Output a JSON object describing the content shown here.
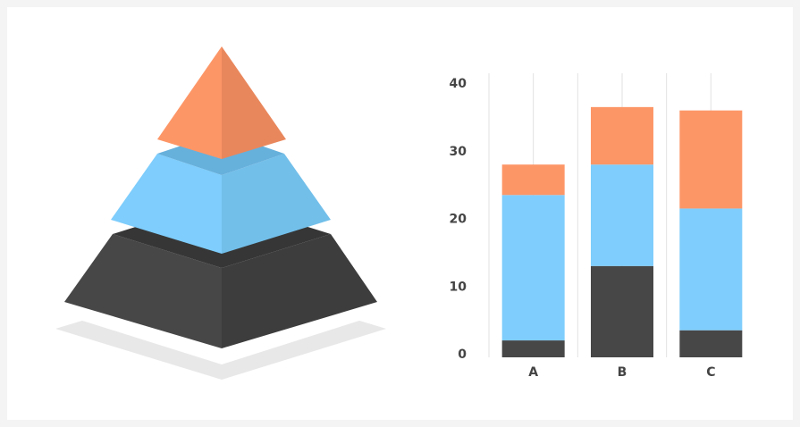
{
  "chart_data": {
    "type": "stacked-bar",
    "categories": [
      "A",
      "B",
      "C"
    ],
    "series": [
      {
        "color": "#474747",
        "values": [
          2.5,
          13.5,
          4
        ]
      },
      {
        "color": "#7ecdfc",
        "values": [
          21.5,
          15,
          18
        ]
      },
      {
        "color": "#fd9667",
        "values": [
          4.5,
          8.5,
          14.5
        ]
      }
    ],
    "ylim": [
      0,
      42
    ],
    "yticks": [
      0,
      10,
      20,
      30,
      40
    ]
  }
}
